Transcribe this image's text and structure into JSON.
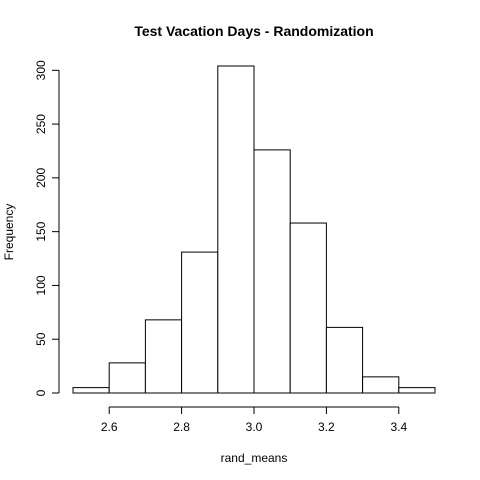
{
  "chart_data": {
    "type": "bar",
    "title": "Test Vacation Days - Randomization",
    "xlabel": "rand_means",
    "ylabel": "Frequency",
    "bins": [
      {
        "from": 2.5,
        "to": 2.6,
        "count": 5
      },
      {
        "from": 2.6,
        "to": 2.7,
        "count": 28
      },
      {
        "from": 2.7,
        "to": 2.8,
        "count": 68
      },
      {
        "from": 2.8,
        "to": 2.9,
        "count": 131
      },
      {
        "from": 2.9,
        "to": 3.0,
        "count": 304
      },
      {
        "from": 3.0,
        "to": 3.1,
        "count": 226
      },
      {
        "from": 3.1,
        "to": 3.2,
        "count": 158
      },
      {
        "from": 3.2,
        "to": 3.3,
        "count": 61
      },
      {
        "from": 3.3,
        "to": 3.4,
        "count": 15
      },
      {
        "from": 3.4,
        "to": 3.5,
        "count": 5
      }
    ],
    "xlim": [
      2.5,
      3.5
    ],
    "ylim": [
      0,
      300
    ],
    "x_ticks": [
      2.6,
      2.8,
      3.0,
      3.2,
      3.4
    ],
    "x_tick_labels": [
      "2.6",
      "2.8",
      "3.0",
      "3.2",
      "3.4"
    ],
    "y_ticks": [
      0,
      50,
      100,
      150,
      200,
      250,
      300
    ],
    "y_tick_labels": [
      "0",
      "50",
      "100",
      "150",
      "200",
      "250",
      "300"
    ],
    "grid": false,
    "bar_fill": "#ffffff",
    "bar_stroke": "#000000"
  }
}
